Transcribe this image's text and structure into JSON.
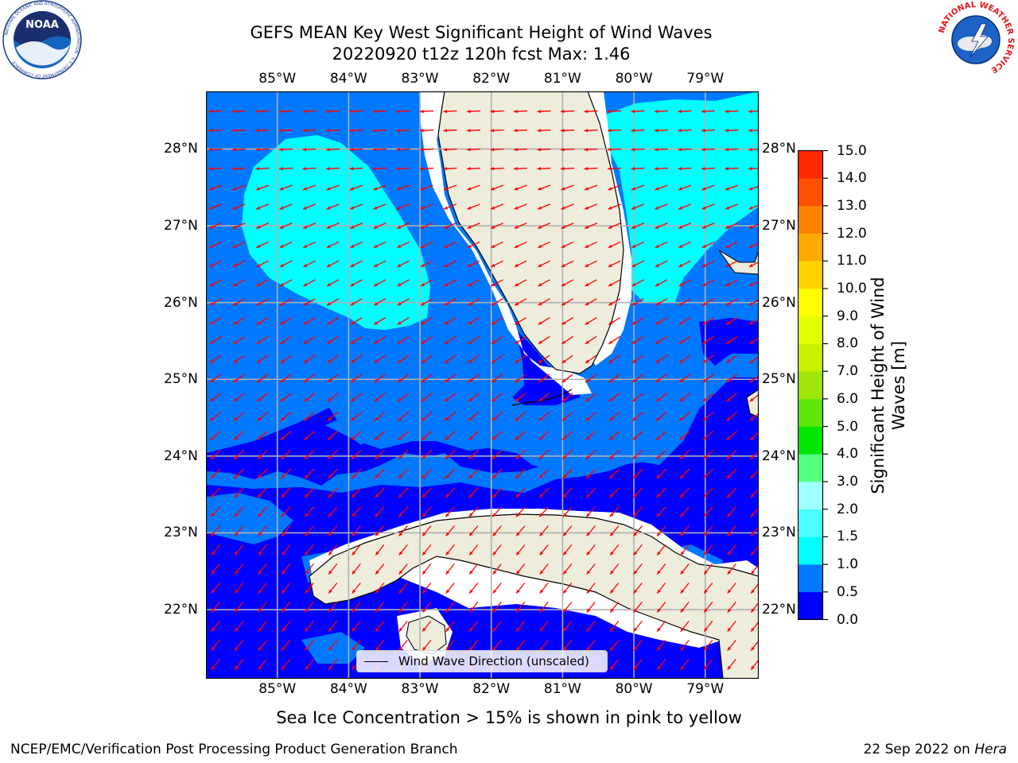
{
  "header": {
    "title_line1": "GEFS MEAN Key West Significant Height of Wind Waves",
    "title_line2": "20220920 t12z 120h fcst   Max: 1.46"
  },
  "logos": {
    "left": {
      "icon": "noaa-logo",
      "text": "NOAA",
      "ring_text": "NATIONAL OCEANIC AND ATMOSPHERIC ADMINISTRATION · U.S. DEPARTMENT OF COMMERCE"
    },
    "right": {
      "icon": "nws-logo",
      "ring_text": "NATIONAL WEATHER SERVICE"
    }
  },
  "map": {
    "lon_ticks": [
      "85°W",
      "84°W",
      "83°W",
      "82°W",
      "81°W",
      "80°W",
      "79°W"
    ],
    "lat_ticks": [
      "28°N",
      "27°N",
      "26°N",
      "25°N",
      "24°N",
      "23°N",
      "22°N"
    ],
    "lon_range": [
      -86.0,
      -78.25
    ],
    "lat_range": [
      21.1,
      28.75
    ],
    "land_color": "#eeeddc",
    "arrow_color": "#ff0000",
    "grid": true
  },
  "legend": {
    "label": "Wind Wave Direction (unscaled)"
  },
  "colorbar": {
    "title": "Significant Height of Wind Waves [m]",
    "ticks": [
      "0.0",
      "0.5",
      "1.0",
      "1.5",
      "2.0",
      "3.0",
      "4.0",
      "5.0",
      "6.0",
      "7.0",
      "8.0",
      "9.0",
      "10.0",
      "11.0",
      "12.0",
      "13.0",
      "14.0",
      "15.0"
    ],
    "colors": [
      "#0000ff",
      "#0078ff",
      "#00ffff",
      "#4cffff",
      "#a0ffff",
      "#55ff80",
      "#00e600",
      "#5fe60a",
      "#a0e60a",
      "#c8f000",
      "#e6ff00",
      "#ffff00",
      "#ffd200",
      "#ffaa00",
      "#ff8200",
      "#ff5000",
      "#ff2800"
    ]
  },
  "footer": {
    "note": "Sea Ice Concentration > 15% is shown in pink to yellow",
    "credit": "NCEP/EMC/Verification Post Processing Product Generation Branch",
    "date": "22 Sep 2022 on",
    "host": "Hera"
  }
}
